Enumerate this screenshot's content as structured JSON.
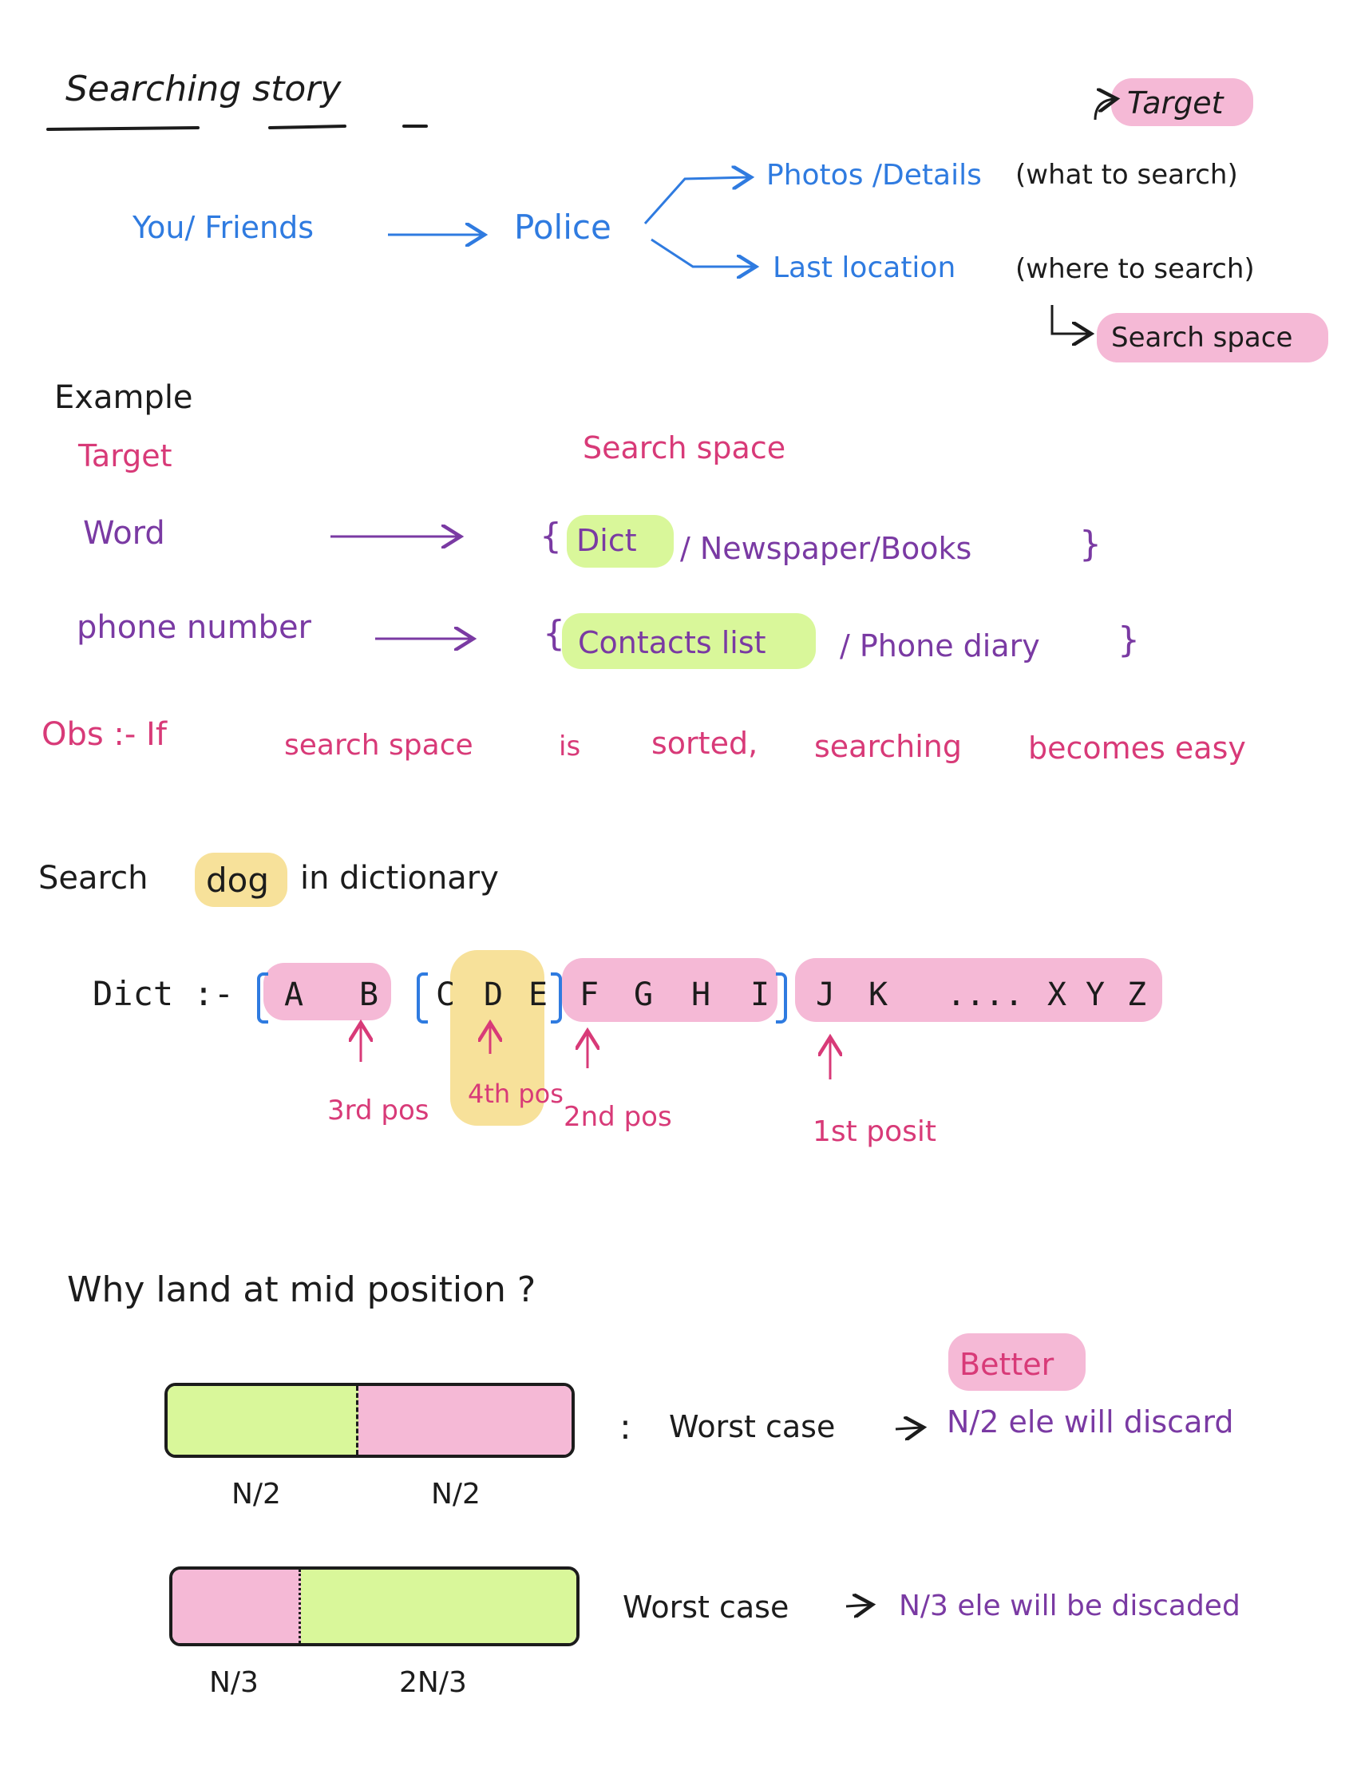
{
  "title": "Searching story",
  "story": {
    "target_tag": "Target",
    "you_friends": "You/ Friends",
    "police": "Police",
    "photos_details": "Photos /Details",
    "what_to_search": "(what to search)",
    "last_location": "Last location",
    "where_to_search": "(where to search)",
    "search_space_tag": "Search space"
  },
  "example": {
    "heading": "Example",
    "col_target": "Target",
    "col_search_space": "Search space",
    "row1_target": "Word",
    "row1_open": "{",
    "row1_highlight": "Dict",
    "row1_rest": "/ Newspaper/Books",
    "row1_close": "}",
    "row2_target": "phone number",
    "row2_open": "{",
    "row2_highlight": "Contacts list",
    "row2_rest": "/ Phone diary",
    "row2_close": "}"
  },
  "obs": {
    "label": "Obs :- If",
    "p1": "search space",
    "p2": "is",
    "p3": "sorted,",
    "p4": "searching",
    "p5": "becomes easy"
  },
  "search_dog": {
    "pre": "Search",
    "word": "dog",
    "post": "in dictionary"
  },
  "dict": {
    "label": "Dict :-",
    "letters": [
      "A",
      "B",
      "C",
      "D",
      "E",
      "F",
      "G",
      "H",
      "I",
      "J",
      "K",
      "....",
      "X",
      "Y",
      "Z"
    ],
    "positions": [
      "3rd pos",
      "4th pos",
      "2nd pos",
      "1st posit"
    ]
  },
  "why": {
    "question": "Why land at mid position ?",
    "better_tag": "Better",
    "bar1_left": "N/2",
    "bar1_right": "N/2",
    "bar1_colon": ":",
    "bar1_worst": "Worst case",
    "bar1_result": "N/2 ele will discard",
    "bar2_left": "N/3",
    "bar2_right": "2N/3",
    "bar2_worst": "Worst case",
    "bar2_result": "N/3 ele will be discaded"
  },
  "colors": {
    "pink_highlight": "#f5b9d6",
    "green_highlight": "#d9f79a",
    "yellow_highlight": "#f7e19a",
    "blue_ink": "#2f7be0",
    "pink_ink": "#d83a78",
    "purple_ink": "#7a3aa3"
  }
}
